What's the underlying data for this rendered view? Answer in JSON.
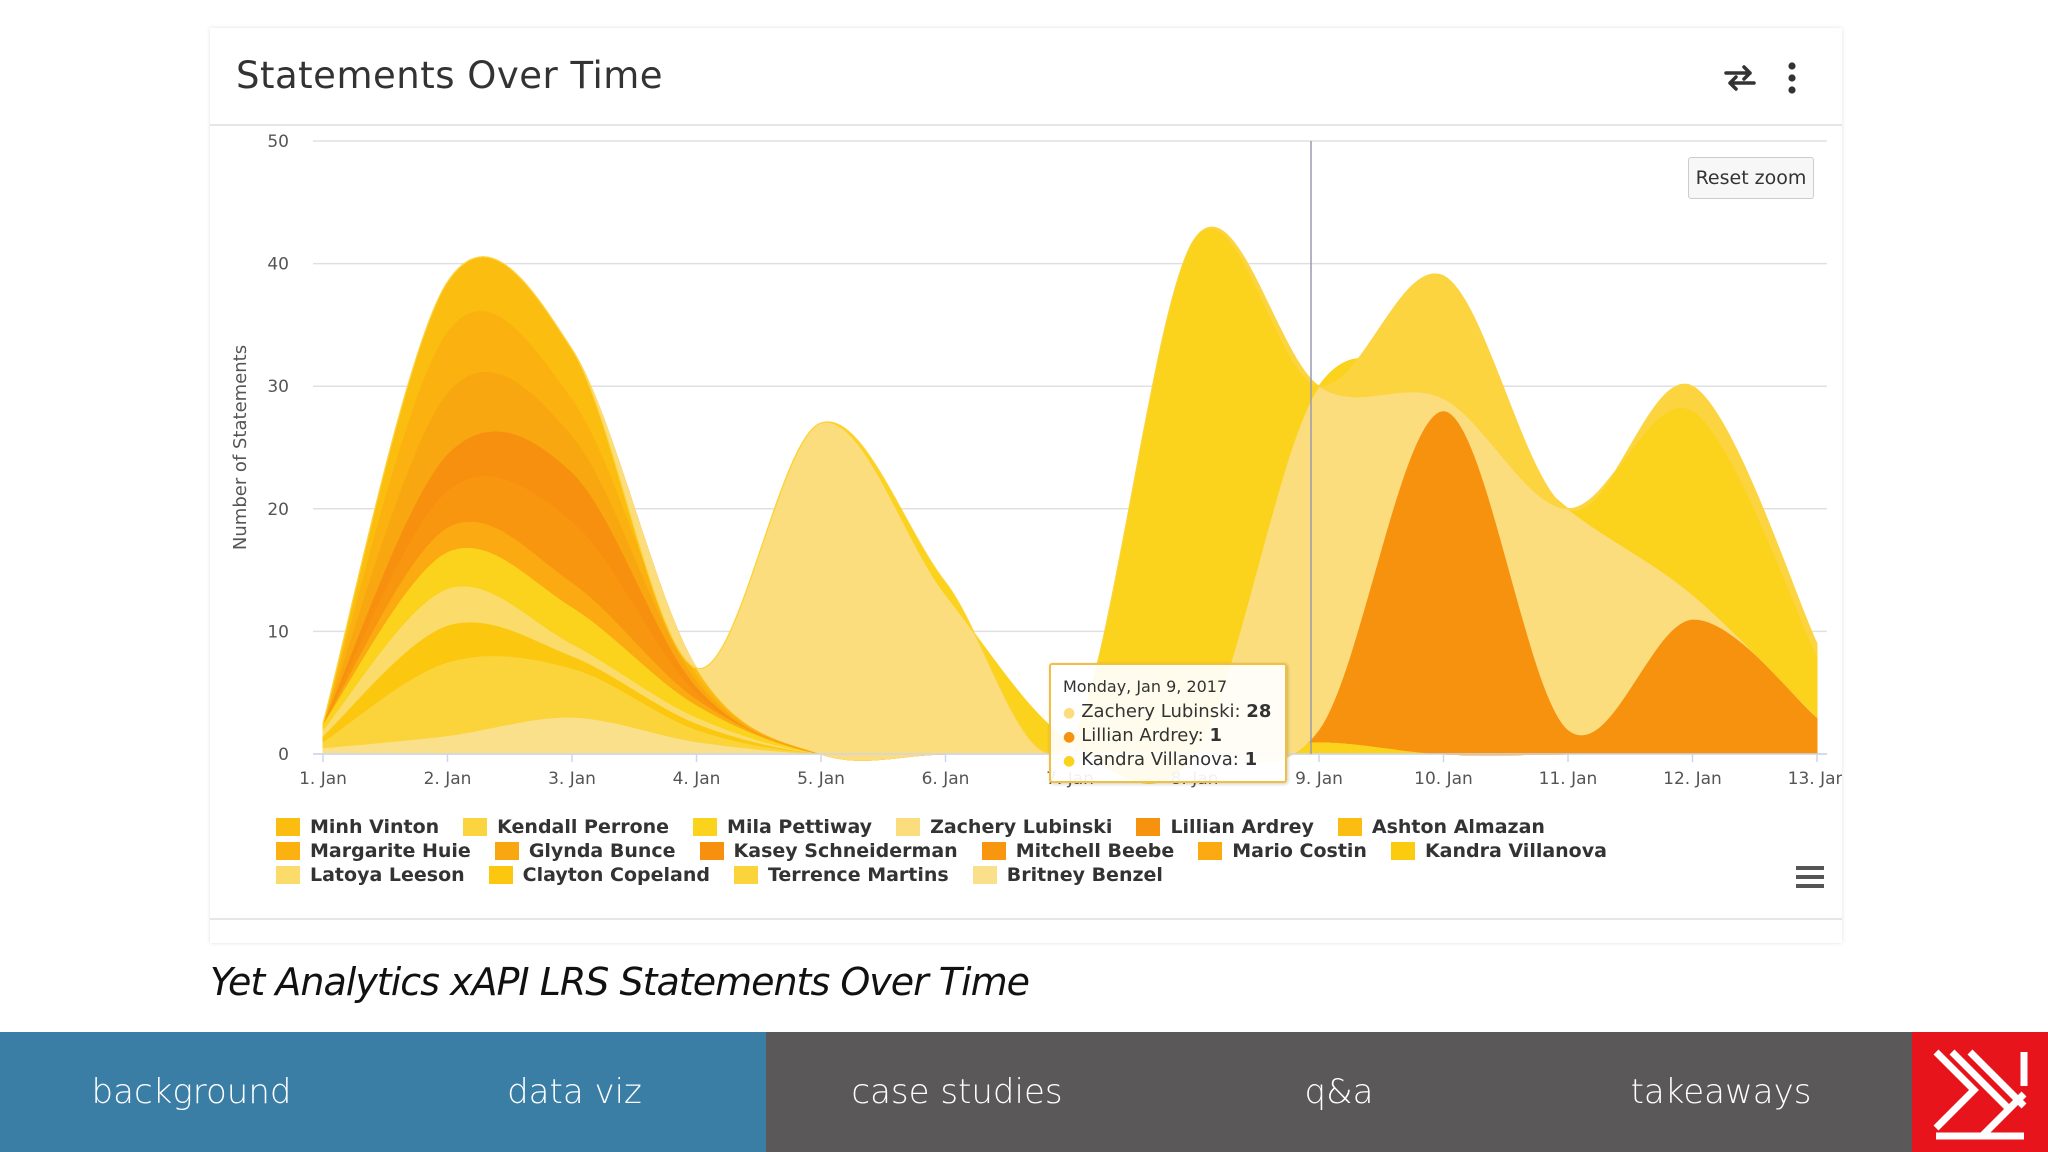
{
  "card": {
    "title": "Statements Over Time",
    "swap_icon": "swap-arrows-icon",
    "more_icon": "more-vertical-icon",
    "reset_zoom_label": "Reset zoom",
    "menu_icon": "hamburger-menu-icon"
  },
  "tooltip": {
    "date": "Monday, Jan 9, 2017",
    "rows": [
      {
        "name": "Zachery Lubinski",
        "value": "28",
        "color": "#fbdd7e"
      },
      {
        "name": "Lillian Ardrey",
        "value": "1",
        "color": "#f7920f"
      },
      {
        "name": "Kandra Villanova",
        "value": "1",
        "color": "#fbd21c"
      }
    ]
  },
  "legend": [
    {
      "name": "Minh Vinton",
      "color": "#fbbd0f"
    },
    {
      "name": "Kendall Perrone",
      "color": "#fbd440"
    },
    {
      "name": "Mila Pettiway",
      "color": "#fbd21c"
    },
    {
      "name": "Zachery Lubinski",
      "color": "#fbdd7e"
    },
    {
      "name": "Lillian Ardrey",
      "color": "#f7920f"
    },
    {
      "name": "Ashton Almazan",
      "color": "#fbbd0f"
    },
    {
      "name": "Margarite Huie",
      "color": "#fbb10f"
    },
    {
      "name": "Glynda Bunce",
      "color": "#f9a711"
    },
    {
      "name": "Kasey Schneiderman",
      "color": "#f8900f"
    },
    {
      "name": "Mitchell Beebe",
      "color": "#f8970f"
    },
    {
      "name": "Mario Costin",
      "color": "#fbab11"
    },
    {
      "name": "Kandra Villanova",
      "color": "#fbcb0f"
    },
    {
      "name": "Latoya Leeson",
      "color": "#fbdb6a"
    },
    {
      "name": "Clayton Copeland",
      "color": "#fbc70f"
    },
    {
      "name": "Terrence Martins",
      "color": "#fbd43c"
    },
    {
      "name": "Britney Benzel",
      "color": "#fbe08c"
    }
  ],
  "chart_data": {
    "type": "area",
    "title": "Statements Over Time",
    "xlabel": "",
    "ylabel": "Number of Statements",
    "ylim": [
      0,
      50
    ],
    "yticks": [
      0,
      10,
      20,
      30,
      40,
      50
    ],
    "categories": [
      "1. Jan",
      "2. Jan",
      "3. Jan",
      "4. Jan",
      "5. Jan",
      "6. Jan",
      "7. Jan",
      "8. Jan",
      "9. Jan",
      "10. Jan",
      "11. Jan",
      "12. Jan",
      "13. Jan"
    ],
    "stacked": true,
    "grid": true,
    "legend_position": "bottom",
    "crosshair_category": "9. Jan",
    "series": [
      {
        "name": "Britney Benzel",
        "color": "#fbe08c",
        "values": [
          0.5,
          1.5,
          3,
          1,
          0,
          0,
          0,
          0,
          0,
          0,
          0,
          0,
          0
        ]
      },
      {
        "name": "Terrence Martins",
        "color": "#fbd43c",
        "values": [
          0.5,
          6,
          4,
          1,
          0,
          0,
          0,
          0,
          0,
          0,
          0,
          0,
          0
        ]
      },
      {
        "name": "Clayton Copeland",
        "color": "#fbc70f",
        "values": [
          0.5,
          3,
          1,
          0.5,
          0,
          0,
          0,
          0,
          0,
          0,
          0,
          0,
          0
        ]
      },
      {
        "name": "Latoya Leeson",
        "color": "#fbdb6a",
        "values": [
          0.5,
          3,
          1,
          0.5,
          0,
          0,
          0,
          0,
          0,
          0,
          0,
          0,
          0
        ]
      },
      {
        "name": "Kandra Villanova",
        "color": "#fbd21c",
        "values": [
          0.5,
          3,
          3,
          1,
          0,
          0,
          0,
          0,
          1,
          0,
          0,
          0,
          0
        ]
      },
      {
        "name": "Mario Costin",
        "color": "#fbab11",
        "values": [
          0,
          2,
          2,
          0.5,
          0,
          0,
          0,
          0,
          0,
          0,
          0,
          0,
          0
        ]
      },
      {
        "name": "Mitchell Beebe",
        "color": "#f8970f",
        "values": [
          0,
          3,
          5,
          0.5,
          0,
          0,
          0,
          0,
          0,
          0,
          0,
          0,
          0
        ]
      },
      {
        "name": "Kasey Schneiderman",
        "color": "#f8900f",
        "values": [
          0,
          3,
          4,
          0.5,
          0,
          0,
          0,
          0,
          0,
          0,
          0,
          0,
          0
        ]
      },
      {
        "name": "Glynda Bunce",
        "color": "#f9a711",
        "values": [
          0,
          5,
          3,
          0.5,
          0,
          0,
          0,
          0,
          0,
          0,
          0,
          0,
          0
        ]
      },
      {
        "name": "Margarite Huie",
        "color": "#fbb10f",
        "values": [
          0,
          5,
          3,
          0.5,
          0,
          0,
          0,
          0,
          0,
          0,
          0,
          0,
          0
        ]
      },
      {
        "name": "Ashton Almazan",
        "color": "#fbbd0f",
        "values": [
          0,
          2,
          2,
          0.5,
          0,
          0,
          0,
          0,
          0,
          0,
          0,
          0,
          0
        ]
      },
      {
        "name": "Minh Vinton",
        "color": "#fbbd0f",
        "values": [
          0,
          2,
          2,
          0,
          0,
          0,
          0,
          0,
          0,
          0,
          0,
          0,
          0
        ]
      },
      {
        "name": "Lillian Ardrey",
        "color": "#f7920f",
        "values": [
          0,
          0,
          0,
          0,
          0,
          0,
          0,
          0,
          1,
          28,
          2,
          11,
          3
        ]
      },
      {
        "name": "Zachery Lubinski",
        "color": "#fbdd7e",
        "values": [
          0,
          0,
          0,
          0,
          27,
          13,
          1,
          0,
          28,
          1,
          18,
          2,
          0
        ]
      },
      {
        "name": "Mila Pettiway",
        "color": "#fbd21c",
        "values": [
          0,
          0,
          0,
          0,
          0,
          1,
          0,
          42,
          0,
          0,
          0,
          15,
          5
        ]
      },
      {
        "name": "Kendall Perrone",
        "color": "#fbd440",
        "values": [
          0,
          0,
          0,
          0,
          0,
          0,
          0,
          0,
          0,
          10,
          0,
          2,
          1
        ]
      }
    ]
  },
  "caption": "Yet Analytics xAPI LRS Statements Over Time",
  "nav": {
    "tabs": [
      {
        "label": "background",
        "color": "#3a7ea6"
      },
      {
        "label": "data viz",
        "color": "#3a7ea6"
      },
      {
        "label": "case studies",
        "color": "#5a5858"
      },
      {
        "label": "q&a",
        "color": "#5a5858"
      },
      {
        "label": "takeaways",
        "color": "#5a5858"
      }
    ],
    "logo_color": "#e8141c"
  }
}
